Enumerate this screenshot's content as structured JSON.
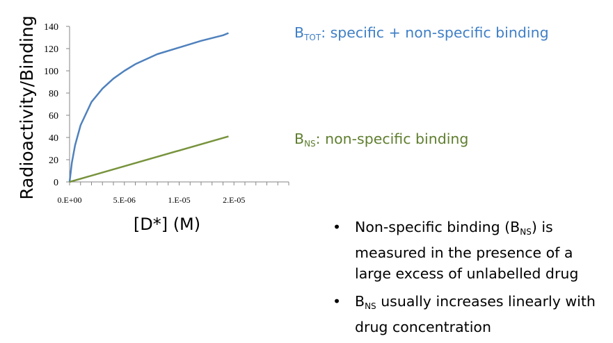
{
  "chart_data": {
    "type": "line",
    "ylabel": "Radioactivity/Binding",
    "xlabel": "[D*] (M)",
    "xlim": [
      0,
      2e-05
    ],
    "ylim": [
      0,
      140
    ],
    "y_ticks": [
      "0",
      "20",
      "40",
      "60",
      "80",
      "100",
      "120",
      "140"
    ],
    "x_ticks": [
      "0.E+00",
      "5.E-06",
      "1.E-05",
      "2.E-05"
    ],
    "x_tick_values": [
      0,
      5e-06,
      1e-05,
      1.5e-05
    ],
    "series": [
      {
        "name": "B_TOT: specific + non-specific binding",
        "color": "#4f81bd",
        "x": [
          0,
          2e-07,
          5e-07,
          1e-06,
          2e-06,
          3e-06,
          4e-06,
          5e-06,
          6e-06,
          8e-06,
          1e-05,
          1.2e-05,
          1.4e-05,
          1.45e-05
        ],
        "y": [
          0,
          17,
          33,
          51,
          72,
          84,
          93,
          100,
          106,
          115,
          121,
          127,
          132,
          134
        ]
      },
      {
        "name": "B_NS: non-specific binding",
        "color": "#77933c",
        "x": [
          0,
          1.45e-05
        ],
        "y": [
          0,
          41
        ]
      }
    ]
  },
  "labels": {
    "tot": {
      "main": "B",
      "sub": "TOT",
      "rest": ": specific + non-specific binding"
    },
    "ns": {
      "main": "B",
      "sub": "NS",
      "rest": ": non-specific binding"
    }
  },
  "bullets": [
    {
      "symbol": "•",
      "pre": "Non-specific binding (B",
      "sub": "NS",
      "post": ") is measured in the presence of a large excess of unlabelled drug"
    },
    {
      "symbol": "•",
      "pre": "B",
      "sub": "NS",
      "post": " usually increases linearly with drug concentration"
    }
  ]
}
